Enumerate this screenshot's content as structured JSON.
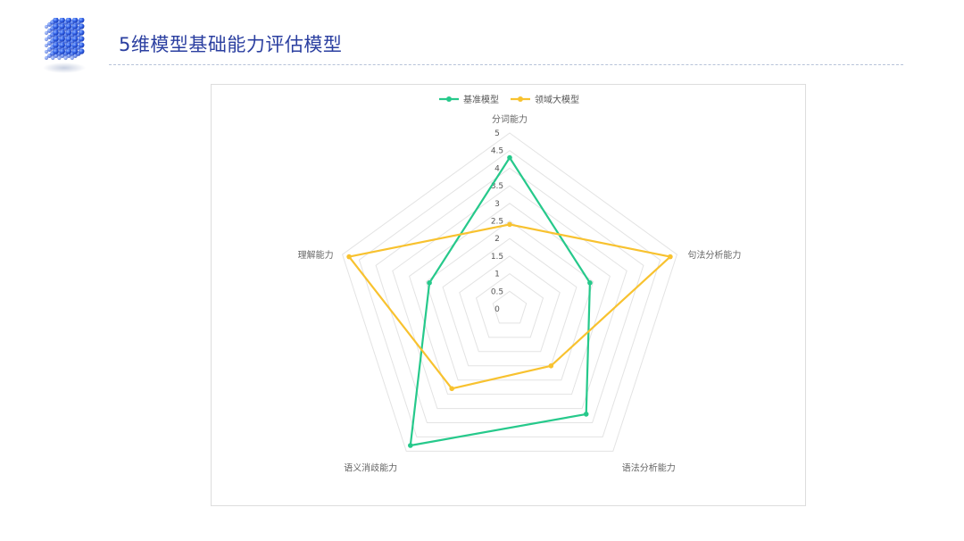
{
  "header": {
    "title": "5维模型基础能力评估模型",
    "logo_icon": "cube-dots-icon"
  },
  "colors": {
    "title": "#2b3fa0",
    "grid": "#e3e3e3",
    "series_1": "#26c98b",
    "series_2": "#f8c22f"
  },
  "chart_data": {
    "type": "radar",
    "title": "",
    "legend_position": "top",
    "grid": true,
    "range": [
      0,
      5
    ],
    "ticks": [
      "0",
      "0.5",
      "1",
      "1.5",
      "2",
      "2.5",
      "3",
      "3.5",
      "4",
      "4.5",
      "5"
    ],
    "categories": [
      "分词能力",
      "句法分析能力",
      "语法分析能力",
      "语义消歧能力",
      "理解能力"
    ],
    "series": [
      {
        "name": "基准模型",
        "color": "#26c98b",
        "values": [
          4.3,
          2.4,
          3.7,
          4.8,
          2.4
        ]
      },
      {
        "name": "领域大模型",
        "color": "#f8c22f",
        "values": [
          2.4,
          4.8,
          2.0,
          2.8,
          4.8
        ]
      }
    ]
  }
}
